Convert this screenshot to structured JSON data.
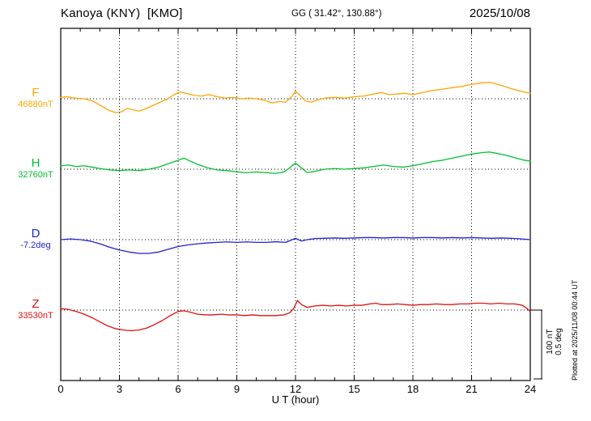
{
  "header": {
    "title": "Kanoya (KNY)  [KMO]",
    "coords": "GG ( 31.42°, 130.88°)",
    "date": "2025/10/08"
  },
  "axis": {
    "xlabel": "U T (hour)",
    "x_ticks": [
      0,
      3,
      6,
      9,
      12,
      15,
      18,
      21,
      24
    ],
    "x_minor_step_hours": 1,
    "x_range": [
      0,
      24
    ]
  },
  "scale_bar": {
    "line1": "100 nT",
    "line2": "0.5 deg",
    "span_nT": 100,
    "span_deg": 0.5
  },
  "plotted_at": "Plotted at 2025/11/08 00:44 UT",
  "series_labels": [
    {
      "letter": "F",
      "value_label": "46880nT",
      "color": "#ffa500"
    },
    {
      "letter": "H",
      "value_label": "32760nT",
      "color": "#00c030"
    },
    {
      "letter": "D",
      "value_label": "-7.2deg",
      "color": "#2222cc"
    },
    {
      "letter": "Z",
      "value_label": "33530nT",
      "color": "#e01010"
    }
  ],
  "chart_data": {
    "type": "line",
    "title": "Kanoya (KNY) [KMO] magnetogram 2025/10/08",
    "xlabel": "U T (hour)",
    "x_unit": "hour UT",
    "x_range_hours": [
      0,
      24
    ],
    "x_tick_hours": [
      0,
      3,
      6,
      9,
      12,
      15,
      18,
      21,
      24
    ],
    "grid": "dotted vertical lines every 3 h; dotted horizontal baseline per trace",
    "scale_note": "vertical scale: 100 nT = 0.5 deg (scale bar at right of Z trace)",
    "legend_position": "left margin, one colored letter per trace",
    "series": [
      {
        "name": "F",
        "unit": "nT",
        "baseline_value": 46880,
        "color": "#ffa500",
        "offsets_are": "deviation from baseline_value",
        "x": [
          0,
          0.3,
          0.7,
          1.2,
          1.6,
          2.0,
          2.4,
          2.8,
          3.1,
          3.4,
          3.7,
          4.0,
          4.3,
          4.7,
          5.0,
          5.4,
          5.8,
          6.1,
          6.4,
          6.8,
          7.2,
          7.6,
          8.0,
          8.4,
          8.8,
          9.2,
          9.6,
          10.0,
          10.4,
          10.8,
          11.2,
          11.5,
          11.8,
          12.0,
          12.2,
          12.5,
          12.8,
          13.1,
          13.5,
          14.0,
          14.5,
          15.0,
          15.5,
          16.0,
          16.4,
          16.8,
          17.2,
          17.6,
          18.0,
          18.5,
          19.0,
          19.5,
          20.0,
          20.5,
          21.0,
          21.5,
          21.9,
          22.3,
          22.7,
          23.1,
          23.5,
          24.0
        ],
        "offsets": [
          2,
          3,
          1,
          0,
          -3,
          -9,
          -16,
          -20,
          -19,
          -14,
          -16,
          -18,
          -15,
          -10,
          -6,
          -1,
          6,
          10,
          8,
          5,
          4,
          6,
          3,
          1,
          2,
          0,
          1,
          0,
          -2,
          -6,
          -4,
          -5,
          3,
          11,
          6,
          -3,
          -5,
          -2,
          1,
          2,
          1,
          3,
          4,
          7,
          9,
          6,
          7,
          8,
          6,
          9,
          12,
          14,
          16,
          18,
          21,
          23,
          24,
          21,
          18,
          14,
          11,
          8
        ]
      },
      {
        "name": "H",
        "unit": "nT",
        "baseline_value": 32760,
        "color": "#00c030",
        "offsets_are": "deviation from baseline_value",
        "x": [
          0,
          0.4,
          0.8,
          1.2,
          1.6,
          2.0,
          2.5,
          3.0,
          3.5,
          4.0,
          4.5,
          5.0,
          5.5,
          6.0,
          6.3,
          6.6,
          7.0,
          7.5,
          8.0,
          8.5,
          9.0,
          9.5,
          10.0,
          10.5,
          11.0,
          11.4,
          11.7,
          12.0,
          12.3,
          12.6,
          13.0,
          13.5,
          14.0,
          14.5,
          15.0,
          15.5,
          16.0,
          16.5,
          17.0,
          17.5,
          18.0,
          18.5,
          19.0,
          19.5,
          20.0,
          20.5,
          21.0,
          21.5,
          21.9,
          22.3,
          22.8,
          23.3,
          23.7,
          24.0
        ],
        "offsets": [
          5,
          6,
          4,
          5,
          3,
          1,
          -1,
          -2,
          -1,
          -2,
          0,
          3,
          8,
          13,
          16,
          12,
          7,
          2,
          -1,
          -2,
          -4,
          -5,
          -4,
          -5,
          -6,
          -4,
          2,
          9,
          2,
          -5,
          -3,
          0,
          1,
          0,
          1,
          2,
          4,
          6,
          4,
          3,
          5,
          8,
          11,
          13,
          16,
          19,
          22,
          24,
          25,
          23,
          20,
          16,
          13,
          12
        ]
      },
      {
        "name": "D",
        "unit": "deg",
        "baseline_value": -7.2,
        "color": "#2222cc",
        "offsets_are": "deviation from baseline_value",
        "x": [
          0,
          0.5,
          1.0,
          1.5,
          2.0,
          2.5,
          3.0,
          3.5,
          4.0,
          4.5,
          5.0,
          5.5,
          6.0,
          6.5,
          7.0,
          7.5,
          8.0,
          8.5,
          9.0,
          9.5,
          10.0,
          10.5,
          11.0,
          11.5,
          11.8,
          12.0,
          12.3,
          12.6,
          13.0,
          13.5,
          14.0,
          14.5,
          15.0,
          15.5,
          16.0,
          16.5,
          17.0,
          17.5,
          18.0,
          18.5,
          19.0,
          19.5,
          20.0,
          20.5,
          21.0,
          21.5,
          22.0,
          22.5,
          23.0,
          23.5,
          24.0
        ],
        "offsets": [
          0.0,
          0.005,
          0.0,
          -0.01,
          -0.03,
          -0.055,
          -0.075,
          -0.09,
          -0.1,
          -0.1,
          -0.09,
          -0.07,
          -0.05,
          -0.038,
          -0.03,
          -0.024,
          -0.02,
          -0.016,
          -0.02,
          -0.016,
          -0.02,
          -0.02,
          -0.015,
          -0.02,
          -0.002,
          0.01,
          -0.01,
          0.0,
          0.008,
          0.01,
          0.012,
          0.01,
          0.012,
          0.015,
          0.015,
          0.012,
          0.015,
          0.015,
          0.012,
          0.015,
          0.015,
          0.012,
          0.015,
          0.012,
          0.015,
          0.012,
          0.01,
          0.012,
          0.01,
          0.006,
          0.0
        ]
      },
      {
        "name": "Z",
        "unit": "nT",
        "baseline_value": 33530,
        "color": "#e01010",
        "offsets_are": "deviation from baseline_value",
        "x": [
          0,
          0.4,
          0.8,
          1.2,
          1.6,
          2.0,
          2.4,
          2.8,
          3.2,
          3.6,
          4.0,
          4.4,
          4.8,
          5.2,
          5.6,
          6.0,
          6.3,
          6.6,
          7.0,
          7.4,
          7.8,
          8.2,
          8.6,
          9.0,
          9.4,
          9.8,
          10.2,
          10.6,
          11.0,
          11.4,
          11.7,
          11.9,
          12.1,
          12.3,
          12.6,
          13.0,
          13.4,
          13.8,
          14.2,
          14.6,
          15.0,
          15.4,
          15.8,
          16.1,
          16.4,
          16.8,
          17.2,
          17.6,
          18.0,
          18.4,
          18.8,
          19.2,
          19.6,
          20.0,
          20.4,
          20.8,
          21.2,
          21.6,
          22.0,
          22.4,
          22.8,
          23.2,
          23.6,
          23.8,
          24.0
        ],
        "offsets": [
          2,
          1,
          -2,
          -6,
          -11,
          -17,
          -23,
          -27,
          -29,
          -30,
          -29,
          -26,
          -21,
          -15,
          -8,
          -2,
          -1,
          -3,
          -6,
          -7,
          -7,
          -6,
          -7,
          -7,
          -8,
          -7,
          -8,
          -8,
          -8,
          -7,
          -4,
          2,
          14,
          8,
          4,
          6,
          7,
          6,
          7,
          6,
          7,
          7,
          9,
          10,
          8,
          8,
          9,
          8,
          7,
          8,
          8,
          9,
          8,
          8,
          9,
          9,
          10,
          10,
          9,
          10,
          9,
          9,
          7,
          3,
          -2
        ]
      }
    ]
  }
}
